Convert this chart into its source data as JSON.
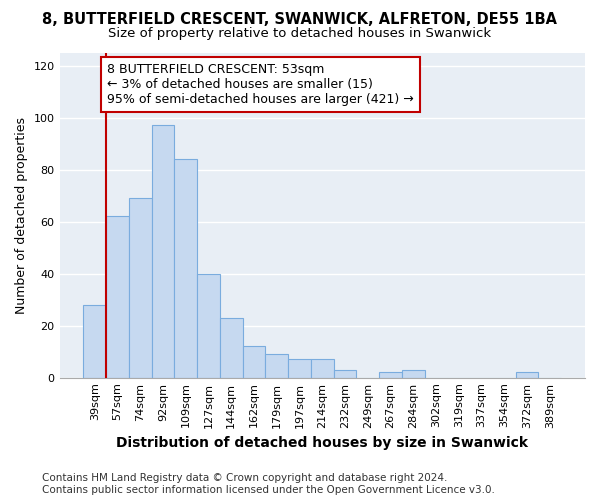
{
  "title": "8, BUTTERFIELD CRESCENT, SWANWICK, ALFRETON, DE55 1BA",
  "subtitle": "Size of property relative to detached houses in Swanwick",
  "xlabel": "Distribution of detached houses by size in Swanwick",
  "ylabel": "Number of detached properties",
  "categories": [
    "39sqm",
    "57sqm",
    "74sqm",
    "92sqm",
    "109sqm",
    "127sqm",
    "144sqm",
    "162sqm",
    "179sqm",
    "197sqm",
    "214sqm",
    "232sqm",
    "249sqm",
    "267sqm",
    "284sqm",
    "302sqm",
    "319sqm",
    "337sqm",
    "354sqm",
    "372sqm",
    "389sqm"
  ],
  "values": [
    28,
    62,
    69,
    97,
    84,
    40,
    23,
    12,
    9,
    7,
    7,
    3,
    0,
    2,
    3,
    0,
    0,
    0,
    0,
    2,
    0
  ],
  "bar_color": "#c6d9f0",
  "bar_edge_color": "#7aacde",
  "annotation_text_line1": "8 BUTTERFIELD CRESCENT: 53sqm",
  "annotation_text_line2": "← 3% of detached houses are smaller (15)",
  "annotation_text_line3": "95% of semi-detached houses are larger (421) →",
  "vline_color": "#c00000",
  "ylim": [
    0,
    125
  ],
  "yticks": [
    0,
    20,
    40,
    60,
    80,
    100,
    120
  ],
  "footer_line1": "Contains HM Land Registry data © Crown copyright and database right 2024.",
  "footer_line2": "Contains public sector information licensed under the Open Government Licence v3.0.",
  "bg_color": "#ffffff",
  "plot_bg_color": "#e8eef5",
  "grid_color": "#ffffff",
  "title_fontsize": 10.5,
  "subtitle_fontsize": 9.5,
  "annotation_fontsize": 9,
  "ylabel_fontsize": 9,
  "xlabel_fontsize": 10,
  "tick_fontsize": 8,
  "footer_fontsize": 7.5
}
